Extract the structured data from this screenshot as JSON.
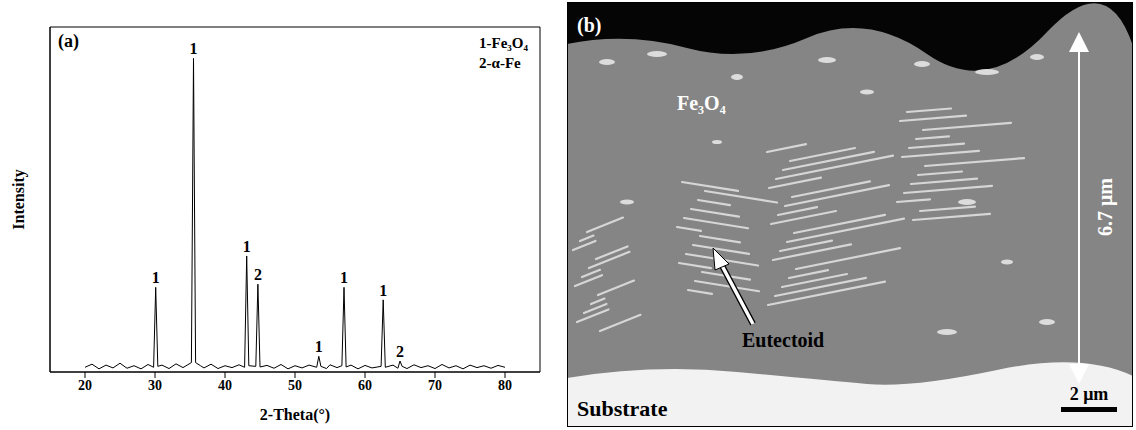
{
  "chart_data": {
    "type": "line",
    "panel_label": "(a)",
    "x_label": "2-Theta(°)",
    "y_label": "Intensity",
    "x": [
      20,
      21,
      22,
      23,
      24,
      25,
      26,
      27,
      28,
      29,
      29.8,
      30.1,
      30.4,
      31,
      32,
      33,
      34,
      35.2,
      35.5,
      35.8,
      36.5,
      37,
      38,
      39,
      40,
      41,
      42,
      42.8,
      43.1,
      43.4,
      44.4,
      44.7,
      45.0,
      46,
      47,
      48,
      49,
      50,
      51,
      52,
      53.1,
      53.4,
      53.7,
      54.5,
      55,
      56,
      56.7,
      57.0,
      57.3,
      58,
      59,
      60,
      61,
      62.3,
      62.6,
      62.9,
      64,
      64.7,
      65.0,
      65.3,
      66,
      67,
      68,
      69,
      70,
      71,
      72,
      73,
      74,
      75,
      76,
      77,
      78,
      79,
      80
    ],
    "values": [
      1.5,
      2.5,
      1.0,
      2.2,
      1.3,
      2.8,
      1.2,
      2.0,
      1.0,
      2.4,
      1.5,
      27,
      1.8,
      2.2,
      1.1,
      2.6,
      1.4,
      3,
      100,
      3,
      2.0,
      1.3,
      2.5,
      1.1,
      2.0,
      1.4,
      2.3,
      1.5,
      37,
      2.0,
      1.8,
      28,
      1.6,
      2.1,
      1.2,
      2.4,
      1.0,
      2.0,
      1.3,
      2.2,
      1.5,
      5,
      1.8,
      1.1,
      2.3,
      1.4,
      2.0,
      27,
      1.6,
      2.2,
      1.0,
      2.1,
      1.3,
      1.8,
      23,
      1.5,
      2.2,
      1.2,
      3.5,
      1.8,
      1.1,
      2.3,
      1.4,
      2.0,
      1.1,
      2.4,
      1.3,
      2.0,
      1.0,
      2.2,
      1.4,
      2.0,
      1.2,
      2.1,
      1.5
    ],
    "color": "#000000",
    "xlim": [
      15,
      85
    ],
    "xticks": [
      20,
      30,
      40,
      50,
      60,
      70,
      80
    ],
    "ylim": [
      0,
      110
    ],
    "yticks": [
      0,
      20,
      40,
      60,
      80,
      100
    ],
    "tick_labels": "x",
    "grid": false,
    "legend": "upper right",
    "legend_entries": [
      "1-Fe₃O₄",
      "2-α-Fe"
    ],
    "annotations": [
      {
        "x": 30.1,
        "y": 27,
        "text": "1"
      },
      {
        "x": 35.5,
        "y": 100,
        "text": "1"
      },
      {
        "x": 43.1,
        "y": 37,
        "text": "1"
      },
      {
        "x": 44.7,
        "y": 28,
        "text": "2"
      },
      {
        "x": 53.4,
        "y": 5,
        "text": "1"
      },
      {
        "x": 57.0,
        "y": 27,
        "text": "1"
      },
      {
        "x": 62.6,
        "y": 23,
        "text": "1"
      },
      {
        "x": 65.0,
        "y": 3.5,
        "text": "2"
      }
    ]
  },
  "micrograph": {
    "panel_label": "(b)",
    "layer": "Fe₃O₄",
    "thickness": "6.7 μm",
    "feature": "Eutectoid",
    "substrate": "Substrate",
    "scale_bar": "2 μm"
  }
}
